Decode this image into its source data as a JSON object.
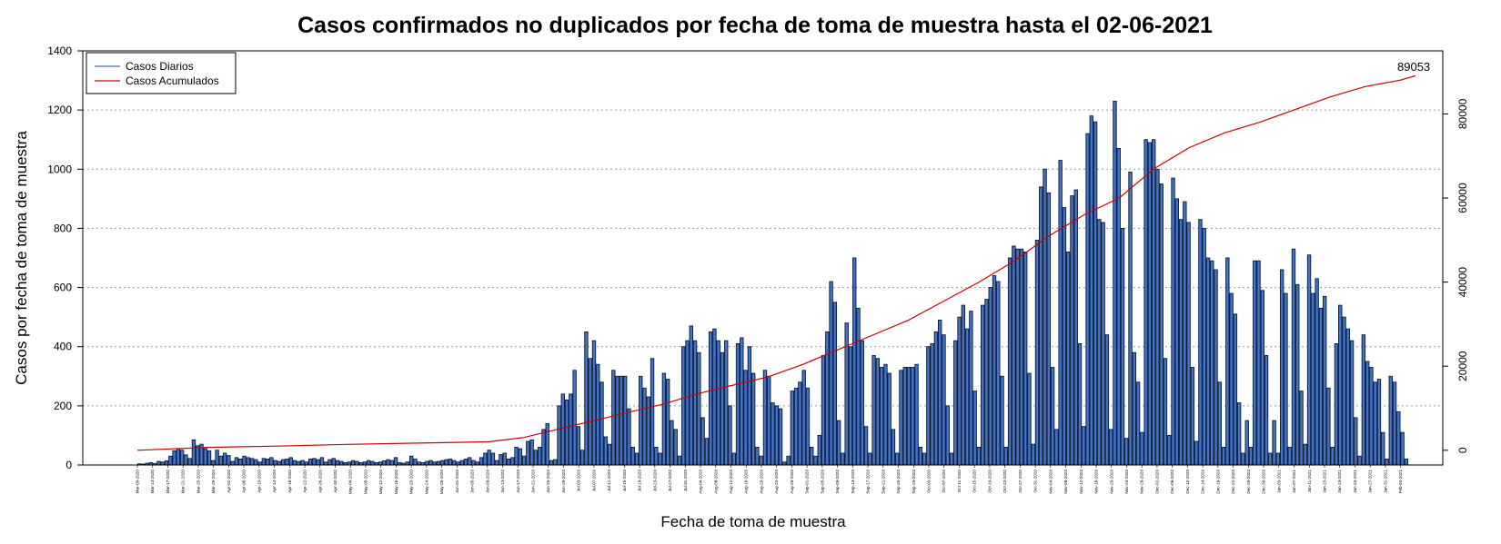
{
  "chart_data": {
    "type": "bar",
    "title": "Casos confirmados no duplicados por fecha de toma de muestra hasta el 02-06-2021",
    "xlabel": "Fecha de toma de muestra",
    "ylabel": "Casos por fecha de toma de muestra",
    "ylim": [
      0,
      1400
    ],
    "yticks": [
      0,
      200,
      400,
      600,
      800,
      1000,
      1200,
      1400
    ],
    "y2lim": [
      -3500,
      95000
    ],
    "y2ticks": [
      0,
      20000,
      40000,
      60000,
      80000
    ],
    "grid": "horizontal-dotted",
    "legend_position": "top-left",
    "end_label": "89053",
    "x_start": "2020-03-09",
    "x_end": "2021-02-06",
    "date_tick_labels": [
      "Mar-09-2020",
      "Mar-13-2020",
      "Mar-17-2020",
      "Mar-21-2020",
      "Mar-25-2020",
      "Mar-29-2020",
      "Apr-02-2020",
      "Apr-06-2020",
      "Apr-10-2020",
      "Apr-14-2020",
      "Apr-18-2020",
      "Apr-22-2020",
      "Apr-26-2020",
      "Apr-30-2020",
      "May-04-2020",
      "May-08-2020",
      "May-12-2020",
      "May-16-2020",
      "May-20-2020",
      "May-24-2020",
      "May-28-2020",
      "Jun-01-2020",
      "Jun-05-2020",
      "Jun-09-2020",
      "Jun-13-2020",
      "Jun-17-2020",
      "Jun-21-2020",
      "Jun-25-2020",
      "Jun-29-2020",
      "Jul-03-2020",
      "Jul-07-2020",
      "Jul-11-2020",
      "Jul-15-2020",
      "Jul-19-2020",
      "Jul-23-2020",
      "Jul-27-2020",
      "Jul-31-2020",
      "Aug-04-2020",
      "Aug-08-2020",
      "Aug-12-2020",
      "Aug-16-2020",
      "Aug-20-2020",
      "Aug-24-2020",
      "Aug-28-2020",
      "Sep-01-2020",
      "Sep-05-2020",
      "Sep-09-2020",
      "Sep-13-2020",
      "Sep-17-2020",
      "Sep-21-2020",
      "Sep-25-2020",
      "Sep-29-2020",
      "Oct-03-2020",
      "Oct-07-2020",
      "Oct-11-2020",
      "Oct-15-2020",
      "Oct-19-2020",
      "Oct-23-2020",
      "Oct-27-2020",
      "Oct-31-2020",
      "Nov-04-2020",
      "Nov-08-2020",
      "Nov-12-2020",
      "Nov-16-2020",
      "Nov-20-2020",
      "Nov-24-2020",
      "Nov-28-2020",
      "Dec-02-2020",
      "Dec-06-2020",
      "Dec-10-2020",
      "Dec-14-2020",
      "Dec-18-2020",
      "Dec-22-2020",
      "Dec-26-2020",
      "Dec-30-2020",
      "Jan-03-2021",
      "Jan-07-2021",
      "Jan-11-2021",
      "Jan-15-2021",
      "Jan-19-2021",
      "Jan-23-2021",
      "Jan-27-2021",
      "Jan-31-2021",
      "Feb-04-2021"
    ],
    "series": [
      {
        "name": "Casos Diarios",
        "type": "bar",
        "color": "#4472c4",
        "values": [
          4,
          3,
          6,
          8,
          5,
          12,
          10,
          14,
          30,
          48,
          55,
          50,
          34,
          22,
          85,
          65,
          70,
          55,
          48,
          15,
          50,
          30,
          40,
          32,
          12,
          25,
          20,
          30,
          25,
          22,
          18,
          10,
          22,
          20,
          25,
          15,
          12,
          18,
          20,
          25,
          15,
          12,
          15,
          10,
          20,
          22,
          18,
          25,
          10,
          18,
          22,
          15,
          12,
          8,
          10,
          15,
          12,
          8,
          10,
          15,
          12,
          8,
          10,
          14,
          18,
          15,
          25,
          8,
          6,
          10,
          30,
          20,
          10,
          8,
          12,
          15,
          10,
          12,
          15,
          18,
          20,
          15,
          10,
          15,
          20,
          25,
          15,
          10,
          25,
          40,
          50,
          40,
          15,
          35,
          40,
          20,
          25,
          60,
          55,
          30,
          80,
          85,
          50,
          60,
          120,
          140,
          15,
          18,
          200,
          240,
          220,
          240,
          320,
          130,
          50,
          450,
          360,
          420,
          340,
          280,
          95,
          70,
          320,
          300,
          300,
          300,
          190,
          60,
          40,
          300,
          260,
          230,
          360,
          60,
          40,
          310,
          290,
          150,
          120,
          30,
          400,
          420,
          470,
          420,
          380,
          160,
          90,
          450,
          460,
          420,
          380,
          420,
          200,
          40,
          410,
          430,
          320,
          400,
          310,
          60,
          30,
          320,
          300,
          210,
          200,
          190,
          10,
          30,
          250,
          260,
          280,
          320,
          260,
          60,
          30,
          100,
          370,
          450,
          620,
          550,
          150,
          40,
          480,
          400,
          700,
          530,
          420,
          130,
          40,
          370,
          360,
          330,
          340,
          310,
          120,
          40,
          320,
          330,
          330,
          330,
          340,
          60,
          40,
          400,
          410,
          450,
          490,
          440,
          200,
          40,
          420,
          500,
          540,
          460,
          520,
          250,
          60,
          540,
          560,
          600,
          640,
          620,
          300,
          60,
          700,
          740,
          730,
          730,
          720,
          310,
          70,
          760,
          940,
          1000,
          920,
          330,
          120,
          1030,
          870,
          720,
          910,
          930,
          410,
          130,
          1120,
          1180,
          1160,
          830,
          820,
          440,
          120,
          1230,
          1070,
          800,
          90,
          990,
          380,
          280,
          110,
          1100,
          1090,
          1100,
          1000,
          950,
          360,
          100,
          970,
          900,
          830,
          890,
          820,
          330,
          80,
          830,
          800,
          700,
          690,
          660,
          280,
          60,
          700,
          580,
          510,
          210,
          40,
          150,
          60,
          690,
          690,
          590,
          370,
          40,
          150,
          40,
          660,
          580,
          60,
          730,
          610,
          250,
          70,
          710,
          580,
          630,
          530,
          570,
          260,
          60,
          410,
          540,
          500,
          460,
          420,
          160,
          30,
          440,
          350,
          330,
          280,
          290,
          110,
          20,
          300,
          280,
          180,
          110,
          20
        ]
      },
      {
        "name": "Casos Acumulados",
        "type": "line",
        "color": "#cc0000",
        "points": [
          [
            0,
            0
          ],
          [
            20,
            700
          ],
          [
            40,
            1000
          ],
          [
            60,
            1400
          ],
          [
            80,
            1700
          ],
          [
            100,
            2000
          ],
          [
            110,
            3000
          ],
          [
            120,
            5000
          ],
          [
            130,
            7000
          ],
          [
            140,
            9000
          ],
          [
            150,
            11000
          ],
          [
            160,
            13500
          ],
          [
            170,
            15500
          ],
          [
            180,
            17500
          ],
          [
            190,
            20500
          ],
          [
            200,
            24000
          ],
          [
            210,
            27500
          ],
          [
            220,
            31000
          ],
          [
            230,
            35500
          ],
          [
            240,
            40000
          ],
          [
            250,
            45000
          ],
          [
            260,
            51000
          ],
          [
            270,
            56000
          ],
          [
            280,
            60000
          ],
          [
            290,
            67000
          ],
          [
            300,
            72000
          ],
          [
            310,
            75500
          ],
          [
            320,
            78000
          ],
          [
            330,
            81000
          ],
          [
            340,
            84000
          ],
          [
            350,
            86500
          ],
          [
            360,
            88000
          ],
          [
            365,
            89053
          ]
        ]
      }
    ]
  }
}
